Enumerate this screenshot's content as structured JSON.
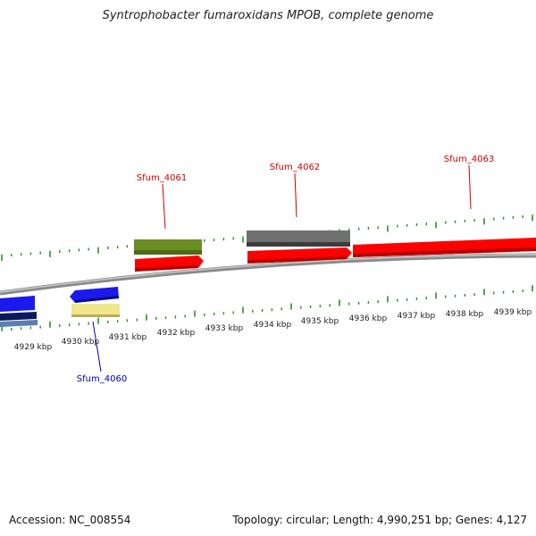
{
  "title": "Syntrophobacter fumaroxidans MPOB, complete genome",
  "footer": {
    "accession": "Accession: NC_008554",
    "topology": "Topology: circular; Length: 4,990,251 bp; Genes: 4,127"
  },
  "colors": {
    "background": "#ffffff",
    "backbone": "#8a8a8a",
    "tick_marks": "#2e8b2e",
    "label_forward": "#cc0000",
    "label_reverse": "#0000aa",
    "gene_red": "#ff0000",
    "gene_blue": "#1a1aee",
    "gene_navy": "#0a1a5c",
    "gene_steel": "#5b7fae",
    "gene_olive": "#6b8e23",
    "gene_gray": "#707070",
    "gene_khaki": "#f0e68c"
  },
  "genes": [
    {
      "label": "Sfum_4060",
      "strand": "reverse"
    },
    {
      "label": "Sfum_4061",
      "strand": "forward"
    },
    {
      "label": "Sfum_4062",
      "strand": "forward"
    },
    {
      "label": "Sfum_4063",
      "strand": "forward"
    }
  ],
  "scale_labels": [
    "4929 kbp",
    "4930 kbp",
    "4931 kbp",
    "4932 kbp",
    "4933 kbp",
    "4934 kbp",
    "4935 kbp",
    "4936 kbp",
    "4937 kbp",
    "4938 kbp",
    "4939 kbp"
  ]
}
